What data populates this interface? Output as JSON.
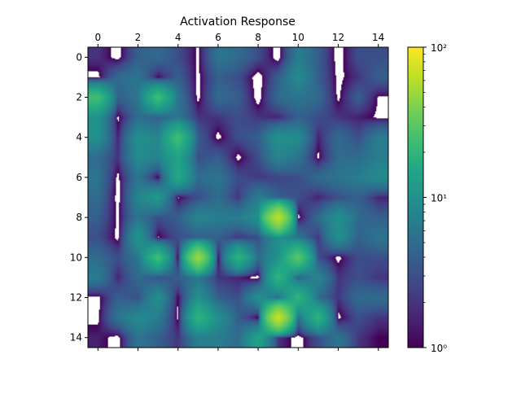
{
  "chart_data": {
    "type": "heatmap",
    "title": "Activation Response",
    "xlabel": "",
    "ylabel": "",
    "x_axis_position": "top",
    "x_ticks": [
      0,
      2,
      4,
      6,
      8,
      10,
      12,
      14
    ],
    "y_ticks": [
      0,
      2,
      4,
      6,
      8,
      10,
      12,
      14
    ],
    "xlim": [
      -0.5,
      14.5
    ],
    "ylim": [
      14.5,
      -0.5
    ],
    "grid": false,
    "interpolation": "bicubic",
    "colormap": "viridis",
    "color_scale": "log",
    "colorbar": {
      "position": "right",
      "min": 1,
      "max": 100,
      "major_ticks": [
        1,
        10,
        100
      ],
      "major_tick_labels": [
        "10⁰",
        "10¹",
        "10²"
      ],
      "minor_ticks": [
        2,
        3,
        4,
        5,
        6,
        7,
        8,
        9,
        20,
        30,
        40,
        50,
        60,
        70,
        80,
        90
      ]
    },
    "masked_color": "#ffffff",
    "masked_note": "values below 1 are masked (white) on the log scale",
    "values": [
      [
        2,
        0.5,
        4,
        5,
        3,
        0.8,
        6,
        5,
        3,
        0.3,
        7,
        4,
        0.3,
        3,
        3
      ],
      [
        0.6,
        5,
        6,
        1,
        4,
        0.7,
        4,
        3,
        0.2,
        4,
        9,
        4,
        0.6,
        2,
        4
      ],
      [
        24,
        4,
        6,
        24,
        6,
        0.6,
        5,
        4,
        0.3,
        5,
        6,
        5,
        0.7,
        4,
        0.9
      ],
      [
        10,
        0.7,
        5,
        4,
        6,
        2,
        2,
        3,
        2,
        1.5,
        4,
        3,
        2,
        1.5,
        0.8
      ],
      [
        10,
        1.5,
        10,
        8,
        24,
        4,
        0.6,
        3,
        4,
        10,
        9,
        1.5,
        5,
        3,
        7
      ],
      [
        5,
        2,
        9,
        8,
        14,
        3,
        4,
        0.6,
        3,
        8,
        6,
        0.7,
        5,
        5,
        7
      ],
      [
        6,
        0.6,
        6,
        0.8,
        16,
        5,
        6,
        3,
        2,
        2.5,
        3,
        5,
        6,
        7,
        9
      ],
      [
        5,
        0.4,
        8,
        12,
        0.8,
        3,
        5,
        2,
        7,
        4,
        3,
        1.5,
        3,
        4,
        1.5
      ],
      [
        4,
        0.7,
        6,
        3,
        4,
        8,
        7,
        7,
        10,
        65,
        0.6,
        5,
        10,
        5,
        4
      ],
      [
        3,
        0.6,
        11,
        0.8,
        3,
        4,
        4,
        2,
        3,
        10,
        6,
        2,
        10,
        4,
        6
      ],
      [
        5,
        3,
        6,
        24,
        0.6,
        50,
        0.7,
        20,
        5,
        10,
        30,
        3,
        0.6,
        3,
        3
      ],
      [
        7,
        1.5,
        5,
        3,
        4,
        6,
        2,
        1.5,
        0.4,
        20,
        4,
        8,
        2,
        3,
        2
      ],
      [
        0.6,
        4,
        3,
        10,
        0.9,
        10,
        4,
        3,
        10,
        5,
        20,
        5,
        2,
        5,
        5
      ],
      [
        0.7,
        6,
        9,
        7,
        0.7,
        20,
        10,
        4,
        0.7,
        70,
        5,
        20,
        0.6,
        3,
        2
      ],
      [
        1.5,
        0.5,
        6,
        4,
        2,
        7,
        7,
        5,
        14,
        2,
        0.4,
        3,
        6,
        2,
        1
      ]
    ]
  }
}
